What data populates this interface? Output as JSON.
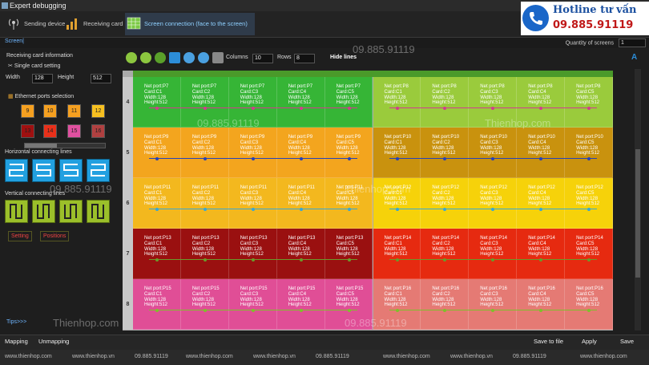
{
  "window": {
    "title": "Expert debugging"
  },
  "tabs": [
    {
      "label": "Sending device",
      "icon": "antenna-icon"
    },
    {
      "label": "Receiving card",
      "icon": "signal-bars-icon"
    },
    {
      "label": "Screen connection (face to the screen)",
      "icon": "grid-screen-icon",
      "active": true
    }
  ],
  "subbar": {
    "screens_link": "Screen|",
    "quantity_label": "Quantity of screens",
    "quantity_value": "1"
  },
  "left": {
    "receiving_info": "Receiving card information",
    "single_card": "Single card setting",
    "width_label": "Width",
    "width_value": "128",
    "height_label": "Height",
    "height_value": "512",
    "ports_title": "Ethernet ports selection",
    "ports": [
      "9",
      "10",
      "11",
      "12",
      "13",
      "14",
      "15",
      "16"
    ],
    "horizontal_title": "Horizontal connecting lines",
    "vertical_title": "Vertical connecting lines",
    "setting": "Setting",
    "positions": "Positions",
    "tips": "Tips>>>"
  },
  "toolbar": {
    "columns_label": "Columns",
    "columns_value": "10",
    "rows_label": "Rows",
    "rows_value": "8",
    "hide_lines": "Hide lines"
  },
  "grid": {
    "row_labels": [
      "4",
      "5",
      "6",
      "7",
      "8"
    ],
    "rows": [
      {
        "ports": [
          "P7",
          "P8"
        ],
        "colors": [
          "#36b536",
          "#9acb3c"
        ],
        "line": "#d23c8e"
      },
      {
        "ports": [
          "P9",
          "P10"
        ],
        "colors": [
          "#f3a51e",
          "#c9920e"
        ],
        "line": "#2743b8"
      },
      {
        "ports": [
          "P11",
          "P12"
        ],
        "colors": [
          "#f3b81e",
          "#f6d20a"
        ],
        "line": "#36a6d8"
      },
      {
        "ports": [
          "P13",
          "P14"
        ],
        "colors": [
          "#9a1010",
          "#e62a10"
        ],
        "line": "#6a9a2a"
      },
      {
        "ports": [
          "P15",
          "P16"
        ],
        "colors": [
          "#e04e96",
          "#e57a74"
        ],
        "line": "#7ec02a"
      }
    ],
    "cards": [
      "C1",
      "C2",
      "C3",
      "C4",
      "C5"
    ],
    "width_text": "Width:128",
    "height_text": "Height:512"
  },
  "bottom": {
    "mapping": "Mapping",
    "unmapping": "Unmapping",
    "save_file": "Save to file",
    "apply": "Apply",
    "save": "Save"
  },
  "footer": [
    "www.thienhop.com",
    "www.thienhop.vn",
    "09.885.91119",
    "www.thienhop.com",
    "www.thienhop.vn",
    "09.885.91119",
    "www.thienhop.com",
    "www.thienhop.vn",
    "09.885.91119",
    "www.thienhop.com"
  ],
  "hotline": {
    "title": "Hotline tư vấn",
    "number": "09.885.91119"
  },
  "watermarks": [
    "09.885.91119",
    "Thienhop.com",
    "09.885.91119",
    "Thienhop.com",
    "09.885.91119",
    "Thienhop.com",
    "09.885.91119"
  ]
}
